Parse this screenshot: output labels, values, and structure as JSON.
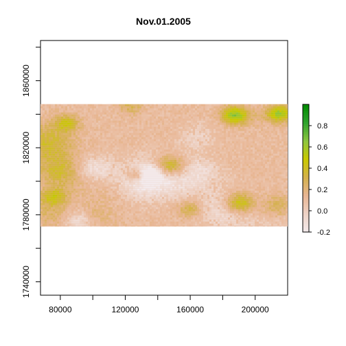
{
  "title": "Nov.01.2005",
  "chart_data": {
    "type": "heatmap",
    "title": "Nov.01.2005",
    "xlabel": "",
    "ylabel": "",
    "xlim": [
      67800,
      220000
    ],
    "ylim": [
      1732000,
      1884000
    ],
    "x_ticks": [
      80000,
      100000,
      120000,
      140000,
      160000,
      180000,
      200000
    ],
    "x_tick_labels": [
      "80000",
      "",
      "120000",
      "",
      "160000",
      "",
      "200000"
    ],
    "y_ticks": [
      1740000,
      1760000,
      1780000,
      1800000,
      1820000,
      1840000,
      1860000,
      1880000
    ],
    "y_tick_labels": [
      "1740000",
      "",
      "1780000",
      "",
      "1820000",
      "",
      "1860000",
      ""
    ],
    "raster_extent": {
      "xmin": 67800,
      "xmax": 220000,
      "ymin": 1773000,
      "ymax": 1846000
    },
    "value_range": [
      -0.2,
      1.0
    ],
    "dominant_value": 0.1,
    "legend": {
      "placement": "right",
      "ticks": [
        -0.2,
        0.0,
        0.2,
        0.4,
        0.6,
        0.8
      ],
      "tick_labels": [
        "-0.2",
        "0.0",
        "0.2",
        "0.4",
        "0.6",
        "0.8"
      ],
      "colors": [
        "#f3eaec",
        "#eed3c6",
        "#e8b694",
        "#d4b14c",
        "#c9c900",
        "#8dc63f",
        "#2ea32e",
        "#008b00"
      ]
    },
    "grid": false
  }
}
